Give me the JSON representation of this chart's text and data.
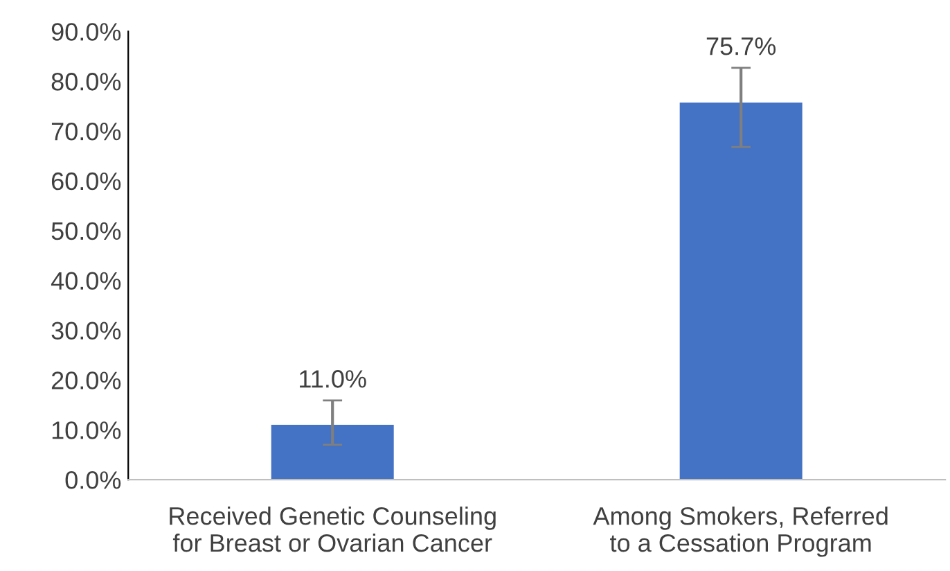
{
  "chart_data": {
    "type": "bar",
    "categories": [
      "Received Genetic Counseling\nfor Breast or Ovarian Cancer",
      "Among Smokers, Referred\nto a Cessation Program"
    ],
    "values": [
      11.0,
      75.7
    ],
    "value_labels": [
      "11.0%",
      "75.7%"
    ],
    "errors": [
      [
        7.0,
        15.9
      ],
      [
        66.8,
        82.7
      ]
    ],
    "color": "#4472c4",
    "ylim": [
      0,
      90
    ],
    "yticks": [
      {
        "value": 0,
        "label": "0.0%"
      },
      {
        "value": 10,
        "label": "10.0%"
      },
      {
        "value": 20,
        "label": "20.0%"
      },
      {
        "value": 30,
        "label": "30.0%"
      },
      {
        "value": 40,
        "label": "40.0%"
      },
      {
        "value": 50,
        "label": "50.0%"
      },
      {
        "value": 60,
        "label": "60.0%"
      },
      {
        "value": 70,
        "label": "70.0%"
      },
      {
        "value": 80,
        "label": "80.0%"
      },
      {
        "value": 90,
        "label": "90.0%"
      }
    ],
    "grid": false,
    "legend": false
  }
}
